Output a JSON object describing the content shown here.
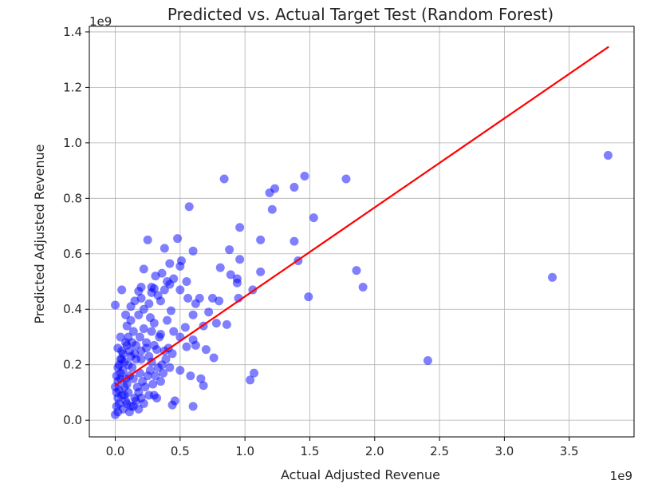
{
  "chart_data": {
    "type": "scatter",
    "title": "Predicted vs. Actual Target Test (Random Forest)",
    "xlabel": "Actual Adjusted Revenue",
    "ylabel": "Predicted Adjusted Revenue",
    "x_offset_label": "1e9",
    "y_offset_label": "1e9",
    "xlim": [
      -0.2,
      4.0
    ],
    "ylim": [
      -0.06,
      1.42
    ],
    "x_ticks": [
      0.0,
      0.5,
      1.0,
      1.5,
      2.0,
      2.5,
      3.0,
      3.5
    ],
    "x_tick_labels": [
      "0.0",
      "0.5",
      "1.0",
      "1.5",
      "2.0",
      "2.5",
      "3.0",
      "3.5"
    ],
    "y_ticks": [
      0.0,
      0.2,
      0.4,
      0.6,
      0.8,
      1.0,
      1.2,
      1.4
    ],
    "y_tick_labels": [
      "0.0",
      "0.2",
      "0.4",
      "0.6",
      "0.8",
      "1.0",
      "1.2",
      "1.4"
    ],
    "grid": true,
    "colors": {
      "points": "#0000ff",
      "fit_line": "#ff0000"
    },
    "fit_line": {
      "x": [
        0.0,
        3.8
      ],
      "y": [
        0.125,
        1.345
      ]
    },
    "series": [
      {
        "values_xy": [
          [
            0.84,
            0.87
          ],
          [
            1.46,
            0.88
          ],
          [
            1.78,
            0.87
          ],
          [
            1.38,
            0.84
          ],
          [
            1.23,
            0.835
          ],
          [
            1.19,
            0.82
          ],
          [
            0.57,
            0.77
          ],
          [
            1.21,
            0.76
          ],
          [
            1.53,
            0.73
          ],
          [
            3.8,
            0.955
          ],
          [
            0.96,
            0.695
          ],
          [
            0.25,
            0.65
          ],
          [
            0.48,
            0.655
          ],
          [
            1.12,
            0.65
          ],
          [
            1.38,
            0.645
          ],
          [
            0.38,
            0.62
          ],
          [
            0.88,
            0.615
          ],
          [
            0.6,
            0.61
          ],
          [
            0.96,
            0.58
          ],
          [
            1.41,
            0.575
          ],
          [
            0.51,
            0.575
          ],
          [
            0.42,
            0.565
          ],
          [
            0.5,
            0.555
          ],
          [
            0.81,
            0.55
          ],
          [
            1.86,
            0.54
          ],
          [
            0.22,
            0.545
          ],
          [
            1.12,
            0.535
          ],
          [
            0.89,
            0.525
          ],
          [
            0.31,
            0.52
          ],
          [
            0.94,
            0.51
          ],
          [
            0.45,
            0.51
          ],
          [
            0.55,
            0.5
          ],
          [
            0.94,
            0.495
          ],
          [
            0.42,
            0.49
          ],
          [
            1.91,
            0.48
          ],
          [
            0.05,
            0.47
          ],
          [
            0.5,
            0.47
          ],
          [
            1.06,
            0.47
          ],
          [
            0.65,
            0.44
          ],
          [
            0.95,
            0.44
          ],
          [
            1.49,
            0.445
          ],
          [
            0.0,
            0.415
          ],
          [
            0.18,
            0.465
          ],
          [
            0.28,
            0.48
          ],
          [
            0.3,
            0.475
          ],
          [
            0.15,
            0.43
          ],
          [
            0.2,
            0.44
          ],
          [
            0.35,
            0.43
          ],
          [
            0.56,
            0.44
          ],
          [
            0.62,
            0.42
          ],
          [
            0.75,
            0.44
          ],
          [
            0.8,
            0.43
          ],
          [
            0.72,
            0.39
          ],
          [
            0.12,
            0.41
          ],
          [
            0.08,
            0.38
          ],
          [
            0.27,
            0.37
          ],
          [
            0.43,
            0.395
          ],
          [
            0.6,
            0.38
          ],
          [
            0.78,
            0.35
          ],
          [
            0.86,
            0.345
          ],
          [
            0.68,
            0.34
          ],
          [
            0.54,
            0.335
          ],
          [
            0.35,
            0.31
          ],
          [
            0.1,
            0.3
          ],
          [
            0.22,
            0.33
          ],
          [
            0.4,
            0.36
          ],
          [
            0.3,
            0.35
          ],
          [
            0.45,
            0.32
          ],
          [
            0.6,
            0.29
          ],
          [
            0.5,
            0.3
          ],
          [
            0.62,
            0.27
          ],
          [
            0.55,
            0.265
          ],
          [
            0.7,
            0.255
          ],
          [
            0.76,
            0.225
          ],
          [
            0.08,
            0.28
          ],
          [
            0.16,
            0.27
          ],
          [
            0.24,
            0.26
          ],
          [
            0.32,
            0.255
          ],
          [
            0.38,
            0.25
          ],
          [
            0.44,
            0.24
          ],
          [
            0.05,
            0.25
          ],
          [
            0.12,
            0.23
          ],
          [
            0.2,
            0.22
          ],
          [
            0.28,
            0.21
          ],
          [
            0.36,
            0.2
          ],
          [
            0.42,
            0.19
          ],
          [
            0.5,
            0.18
          ],
          [
            0.58,
            0.16
          ],
          [
            0.66,
            0.15
          ],
          [
            0.68,
            0.125
          ],
          [
            2.41,
            0.215
          ],
          [
            3.37,
            0.515
          ],
          [
            1.07,
            0.17
          ],
          [
            1.04,
            0.145
          ],
          [
            0.6,
            0.05
          ],
          [
            0.44,
            0.055
          ],
          [
            0.46,
            0.07
          ],
          [
            0.32,
            0.08
          ],
          [
            0.3,
            0.09
          ],
          [
            0.22,
            0.06
          ],
          [
            0.0,
            0.02
          ],
          [
            0.01,
            0.05
          ],
          [
            0.02,
            0.08
          ],
          [
            0.03,
            0.11
          ],
          [
            0.02,
            0.14
          ],
          [
            0.04,
            0.17
          ],
          [
            0.03,
            0.2
          ],
          [
            0.05,
            0.22
          ],
          [
            0.0,
            0.12
          ],
          [
            0.01,
            0.1
          ],
          [
            0.06,
            0.04
          ],
          [
            0.08,
            0.07
          ],
          [
            0.1,
            0.1
          ],
          [
            0.09,
            0.13
          ],
          [
            0.11,
            0.16
          ],
          [
            0.13,
            0.19
          ],
          [
            0.07,
            0.21
          ],
          [
            0.12,
            0.05
          ],
          [
            0.15,
            0.08
          ],
          [
            0.17,
            0.12
          ],
          [
            0.14,
            0.15
          ],
          [
            0.19,
            0.17
          ],
          [
            0.21,
            0.14
          ],
          [
            0.18,
            0.1
          ],
          [
            0.23,
            0.12
          ],
          [
            0.25,
            0.16
          ],
          [
            0.27,
            0.18
          ],
          [
            0.26,
            0.09
          ],
          [
            0.29,
            0.13
          ],
          [
            0.31,
            0.16
          ],
          [
            0.33,
            0.19
          ],
          [
            0.35,
            0.14
          ],
          [
            0.37,
            0.17
          ],
          [
            0.39,
            0.22
          ],
          [
            0.41,
            0.26
          ],
          [
            0.24,
            0.28
          ],
          [
            0.19,
            0.3
          ],
          [
            0.14,
            0.32
          ],
          [
            0.09,
            0.34
          ],
          [
            0.04,
            0.3
          ],
          [
            0.02,
            0.26
          ],
          [
            0.06,
            0.18
          ],
          [
            0.08,
            0.15
          ],
          [
            0.1,
            0.2
          ],
          [
            0.16,
            0.22
          ],
          [
            0.2,
            0.25
          ],
          [
            0.26,
            0.23
          ],
          [
            0.3,
            0.27
          ],
          [
            0.34,
            0.3
          ],
          [
            0.28,
            0.32
          ],
          [
            0.12,
            0.36
          ],
          [
            0.18,
            0.38
          ],
          [
            0.22,
            0.4
          ],
          [
            0.26,
            0.42
          ],
          [
            0.33,
            0.45
          ],
          [
            0.38,
            0.47
          ],
          [
            0.4,
            0.5
          ],
          [
            0.36,
            0.53
          ],
          [
            0.28,
            0.46
          ],
          [
            0.2,
            0.48
          ],
          [
            0.02,
            0.03
          ],
          [
            0.03,
            0.06
          ],
          [
            0.05,
            0.09
          ],
          [
            0.07,
            0.12
          ],
          [
            0.04,
            0.15
          ],
          [
            0.06,
            0.24
          ],
          [
            0.09,
            0.27
          ],
          [
            0.11,
            0.25
          ],
          [
            0.13,
            0.28
          ],
          [
            0.15,
            0.24
          ],
          [
            0.01,
            0.16
          ],
          [
            0.02,
            0.19
          ],
          [
            0.04,
            0.22
          ],
          [
            0.07,
            0.09
          ],
          [
            0.09,
            0.06
          ],
          [
            0.11,
            0.03
          ],
          [
            0.14,
            0.05
          ],
          [
            0.16,
            0.07
          ],
          [
            0.18,
            0.04
          ],
          [
            0.2,
            0.08
          ]
        ]
      }
    ]
  }
}
